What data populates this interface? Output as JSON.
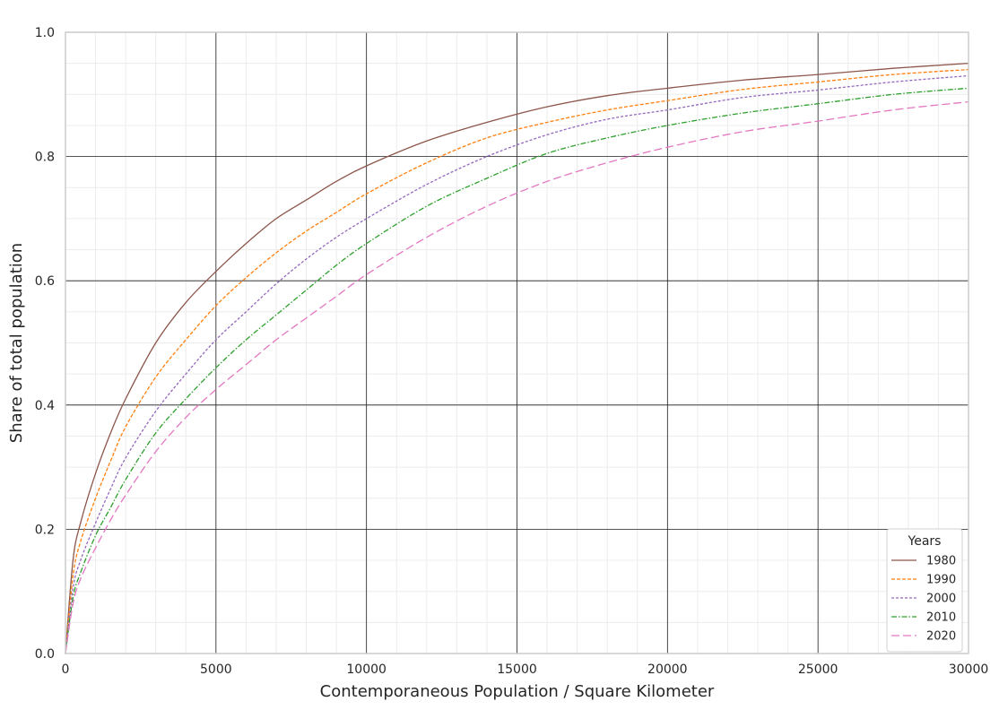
{
  "chart_data": {
    "type": "line",
    "title": "",
    "xlabel": "Contemporaneous Population / Square Kilometer",
    "ylabel": "Share of total population",
    "xlim": [
      0,
      30000
    ],
    "ylim": [
      0,
      1.0
    ],
    "x_ticks": [
      0,
      5000,
      10000,
      15000,
      20000,
      25000,
      30000
    ],
    "y_ticks": [
      0.0,
      0.2,
      0.4,
      0.6,
      0.8,
      1.0
    ],
    "x_tick_labels": [
      "0",
      "5000",
      "10000",
      "15000",
      "20000",
      "25000",
      "30000"
    ],
    "y_tick_labels": [
      "0.0",
      "0.2",
      "0.4",
      "0.6",
      "0.8",
      "1.0"
    ],
    "grid": true,
    "minor_grid": true,
    "legend": {
      "title": "Years",
      "placement": "lower-right"
    },
    "x": [
      0,
      250,
      500,
      1000,
      1500,
      2000,
      3000,
      4000,
      5000,
      6000,
      7000,
      8000,
      9000,
      10000,
      12000,
      14000,
      16000,
      18000,
      20000,
      22500,
      25000,
      27500,
      30000
    ],
    "series": [
      {
        "name": "1980",
        "color": "#8c564b",
        "dash": "solid",
        "values": [
          0.0,
          0.15,
          0.21,
          0.29,
          0.355,
          0.41,
          0.5,
          0.565,
          0.615,
          0.66,
          0.7,
          0.73,
          0.76,
          0.785,
          0.825,
          0.855,
          0.88,
          0.898,
          0.91,
          0.923,
          0.932,
          0.942,
          0.95
        ]
      },
      {
        "name": "1990",
        "color": "#ff7f0e",
        "dash": "dashed",
        "values": [
          0.0,
          0.125,
          0.18,
          0.25,
          0.31,
          0.365,
          0.445,
          0.505,
          0.56,
          0.605,
          0.645,
          0.68,
          0.71,
          0.74,
          0.79,
          0.83,
          0.855,
          0.875,
          0.89,
          0.908,
          0.92,
          0.932,
          0.94
        ]
      },
      {
        "name": "2000",
        "color": "#9467bd",
        "dash": "dotted",
        "values": [
          0.0,
          0.105,
          0.15,
          0.21,
          0.265,
          0.315,
          0.39,
          0.45,
          0.505,
          0.55,
          0.595,
          0.635,
          0.67,
          0.7,
          0.755,
          0.8,
          0.835,
          0.86,
          0.875,
          0.895,
          0.907,
          0.92,
          0.93
        ]
      },
      {
        "name": "2010",
        "color": "#2ca02c",
        "dash": "dashdot",
        "values": [
          0.0,
          0.09,
          0.13,
          0.19,
          0.235,
          0.28,
          0.355,
          0.41,
          0.46,
          0.505,
          0.545,
          0.585,
          0.625,
          0.66,
          0.72,
          0.765,
          0.805,
          0.83,
          0.85,
          0.87,
          0.885,
          0.9,
          0.91
        ]
      },
      {
        "name": "2020",
        "color": "#e377c2",
        "dash": "longdash",
        "values": [
          0.0,
          0.08,
          0.12,
          0.17,
          0.215,
          0.255,
          0.325,
          0.38,
          0.425,
          0.465,
          0.505,
          0.54,
          0.575,
          0.61,
          0.67,
          0.72,
          0.76,
          0.79,
          0.815,
          0.84,
          0.857,
          0.875,
          0.888
        ]
      }
    ]
  }
}
